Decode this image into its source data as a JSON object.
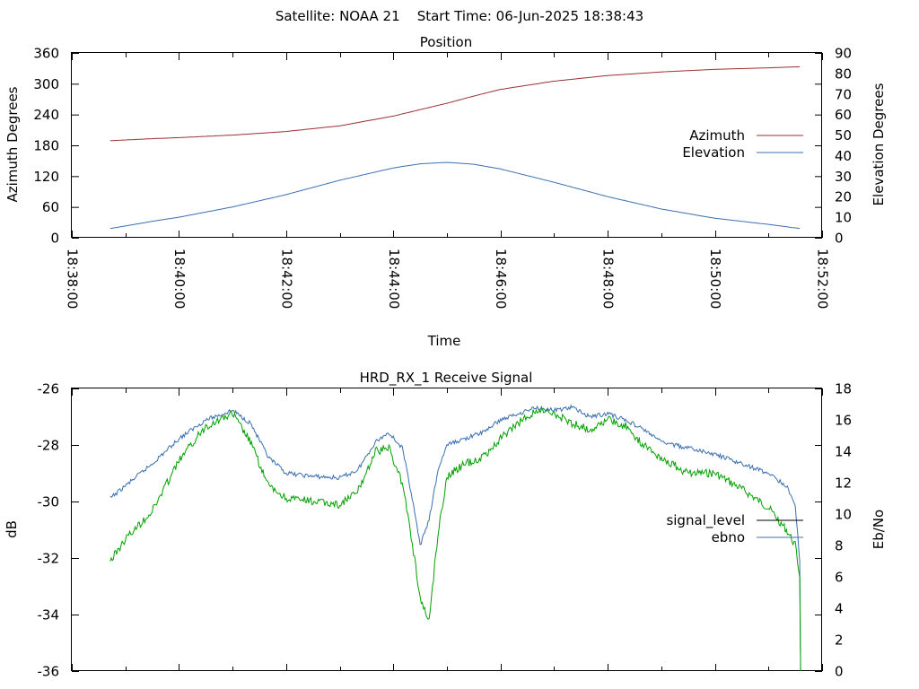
{
  "header": {
    "title": "Satellite: NOAA 21    Start Time: 06-Jun-2025 18:38:43"
  },
  "chart_data": [
    {
      "type": "line",
      "title": "Position",
      "xlabel": "Time",
      "ylabel": "Azimuth Degrees",
      "y2label": "Elevation Degrees",
      "xlim": [
        "18:38:00",
        "18:52:00"
      ],
      "x_ticks": [
        "18:38:00",
        "18:40:00",
        "18:42:00",
        "18:44:00",
        "18:46:00",
        "18:48:00",
        "18:50:00",
        "18:52:00"
      ],
      "ylim": [
        0,
        360
      ],
      "y_ticks": [
        "0",
        "60",
        "120",
        "180",
        "240",
        "300",
        "360"
      ],
      "y2lim": [
        0,
        90
      ],
      "y2_ticks": [
        "0",
        "10",
        "20",
        "30",
        "40",
        "50",
        "60",
        "70",
        "80",
        "90"
      ],
      "legend_position": "right",
      "grid": false,
      "series": [
        {
          "name": "Azimuth",
          "axis": "left",
          "color": "#9b2f2f",
          "x": [
            "18:38:43",
            "18:39:30",
            "18:40:00",
            "18:41:00",
            "18:42:00",
            "18:43:00",
            "18:44:00",
            "18:45:00",
            "18:45:30",
            "18:46:00",
            "18:47:00",
            "18:48:00",
            "18:49:00",
            "18:50:00",
            "18:51:00",
            "18:51:35"
          ],
          "values": [
            189,
            193,
            195,
            200,
            207,
            218,
            237,
            262,
            276,
            289,
            305,
            316,
            323,
            328,
            331,
            333
          ]
        },
        {
          "name": "Elevation",
          "axis": "right",
          "color": "#3a6fb0",
          "x": [
            "18:38:43",
            "18:39:30",
            "18:40:00",
            "18:41:00",
            "18:42:00",
            "18:43:00",
            "18:44:00",
            "18:44:30",
            "18:45:00",
            "18:45:30",
            "18:46:00",
            "18:47:00",
            "18:48:00",
            "18:49:00",
            "18:50:00",
            "18:51:00",
            "18:51:35"
          ],
          "values": [
            4.5,
            8,
            10,
            15,
            21,
            28,
            34,
            36,
            36.7,
            35.8,
            33.5,
            27,
            20,
            14,
            9.5,
            6.5,
            4.5
          ]
        }
      ]
    },
    {
      "type": "line",
      "title": "HRD_RX_1 Receive Signal",
      "ylabel": "dB",
      "y2label": "Eb/No",
      "xlim": [
        "18:38:00",
        "18:52:00"
      ],
      "ylim": [
        -36,
        -26
      ],
      "y_ticks": [
        "-36",
        "-34",
        "-32",
        "-30",
        "-28",
        "-26"
      ],
      "y2lim": [
        0,
        18
      ],
      "y2_ticks": [
        "0",
        "2",
        "4",
        "6",
        "8",
        "10",
        "12",
        "14",
        "16",
        "18"
      ],
      "legend_position": "right",
      "grid": false,
      "series": [
        {
          "name": "signal_level",
          "axis": "left",
          "color": "#000000",
          "x": [],
          "values": []
        },
        {
          "name": "ebno",
          "axis": "right",
          "color": "#3a6fb0",
          "x": [
            "18:38:43",
            "18:39:00",
            "18:39:30",
            "18:40:00",
            "18:40:30",
            "18:41:00",
            "18:41:20",
            "18:41:40",
            "18:42:00",
            "18:42:30",
            "18:43:00",
            "18:43:20",
            "18:43:40",
            "18:43:55",
            "18:44:10",
            "18:44:20",
            "18:44:30",
            "18:44:40",
            "18:44:50",
            "18:45:00",
            "18:45:20",
            "18:45:40",
            "18:46:00",
            "18:46:20",
            "18:46:40",
            "18:47:00",
            "18:47:20",
            "18:47:40",
            "18:48:00",
            "18:48:20",
            "18:48:40",
            "18:49:00",
            "18:49:30",
            "18:50:00",
            "18:50:30",
            "18:51:00",
            "18:51:20",
            "18:51:30",
            "18:51:35",
            "18:51:36"
          ],
          "values": [
            11.0,
            11.8,
            13.2,
            14.8,
            16.0,
            16.6,
            15.8,
            13.6,
            12.6,
            12.4,
            12.3,
            12.8,
            14.6,
            15.2,
            14.2,
            11.4,
            8.0,
            9.6,
            12.8,
            14.4,
            14.8,
            15.2,
            16.0,
            16.4,
            16.8,
            16.6,
            16.8,
            16.2,
            16.4,
            16.0,
            15.4,
            14.6,
            14.2,
            13.8,
            13.2,
            12.6,
            11.8,
            10.6,
            7.0,
            0.0
          ]
        },
        {
          "name": "",
          "axis": "right",
          "color": "#00a000",
          "x": [
            "18:38:43",
            "18:39:00",
            "18:39:30",
            "18:40:00",
            "18:40:30",
            "18:41:00",
            "18:41:20",
            "18:41:40",
            "18:42:00",
            "18:42:30",
            "18:43:00",
            "18:43:20",
            "18:43:40",
            "18:43:55",
            "18:44:10",
            "18:44:20",
            "18:44:30",
            "18:44:40",
            "18:44:50",
            "18:45:00",
            "18:45:20",
            "18:45:40",
            "18:46:00",
            "18:46:20",
            "18:46:40",
            "18:47:00",
            "18:47:20",
            "18:47:40",
            "18:48:00",
            "18:48:20",
            "18:48:40",
            "18:49:00",
            "18:49:30",
            "18:50:00",
            "18:50:30",
            "18:51:00",
            "18:51:20",
            "18:51:30",
            "18:51:35",
            "18:51:36"
          ],
          "values": [
            7.0,
            8.4,
            10.2,
            13.4,
            15.6,
            16.4,
            14.6,
            11.8,
            11.0,
            10.8,
            10.6,
            11.4,
            14.0,
            14.2,
            12.0,
            8.6,
            4.6,
            3.2,
            8.8,
            12.4,
            13.2,
            13.6,
            14.8,
            15.8,
            16.6,
            16.4,
            15.8,
            15.4,
            16.0,
            15.6,
            14.4,
            13.6,
            12.6,
            12.6,
            11.6,
            10.4,
            9.0,
            8.0,
            6.0,
            0.0
          ]
        }
      ]
    }
  ]
}
